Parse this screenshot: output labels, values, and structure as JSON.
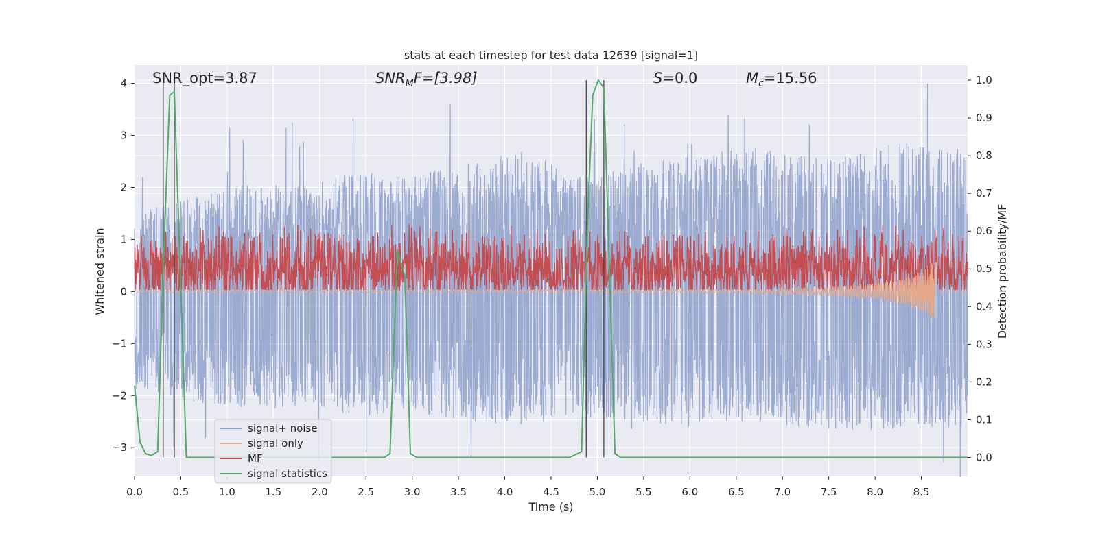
{
  "chart_data": {
    "type": "line",
    "title": "stats at each timestep for test data 12639 [signal=1]",
    "xlabel": "Time (s)",
    "ylabel": "Whitened strain",
    "y2label": "Detection probability/MF",
    "xlim": [
      0.0,
      9.0
    ],
    "ylim": [
      -3.55,
      4.35
    ],
    "y2lim": [
      -0.05,
      1.04
    ],
    "xticks": [
      "0.0",
      "0.5",
      "1.0",
      "1.5",
      "2.0",
      "2.5",
      "3.0",
      "3.5",
      "4.0",
      "4.5",
      "5.0",
      "5.5",
      "6.0",
      "6.5",
      "7.0",
      "7.5",
      "8.0",
      "8.5"
    ],
    "yticks": [
      "4",
      "3",
      "2",
      "1",
      "0",
      "−1",
      "−2",
      "−3"
    ],
    "y2ticks": [
      "1.0",
      "0.9",
      "0.8",
      "0.7",
      "0.6",
      "0.5",
      "0.4",
      "0.3",
      "0.2",
      "0.1",
      "0.0"
    ],
    "grid": true,
    "legend_position": "lower-left",
    "annotations": {
      "snr_opt": "SNR_opt=3.87",
      "snr_mf_base": "SNR",
      "snr_mf_sub": "M",
      "snr_mf_rest": "F=[3.98]",
      "s_stat_var": "S",
      "s_stat_val": "=0.0",
      "mc_base": "M",
      "mc_sub": "c",
      "mc_val": "=15.56"
    },
    "vertical_markers_x": [
      0.31,
      0.43,
      4.88,
      5.07
    ],
    "series": [
      {
        "name": "signal+ noise",
        "color": "#8da0cb",
        "axis": "left",
        "note_values": "noisy whitened strain, roughly symmetric about 0, range approx -3.2 to 4.0",
        "envelope_upper": [
          1.6,
          1.8,
          2.1,
          2.0,
          2.3,
          2.2,
          2.5,
          2.7,
          2.2,
          2.5,
          2.6,
          2.8,
          2.6,
          2.7,
          2.9,
          2.7
        ],
        "envelope_lower": [
          -1.9,
          -2.1,
          -2.3,
          -2.2,
          -2.4,
          -2.3,
          -2.5,
          -2.6,
          -2.4,
          -2.5,
          -2.6,
          -2.5,
          -2.6,
          -2.7,
          -2.6,
          -2.7
        ]
      },
      {
        "name": "signal only",
        "color": "#e8a98a",
        "axis": "left",
        "x": [
          0.0,
          6.5,
          7.0,
          7.5,
          8.0,
          8.3,
          8.5,
          8.6,
          8.65
        ],
        "amplitude": [
          0.02,
          0.03,
          0.05,
          0.08,
          0.15,
          0.25,
          0.4,
          0.55,
          0.6
        ]
      },
      {
        "name": "MF",
        "color": "#c44e52",
        "axis": "right",
        "note_values": "matched filter output fluctuating about 0.5 on right axis, range approx 0.45 to 0.64",
        "center": 0.5
      },
      {
        "name": "signal statistics",
        "color": "#55a868",
        "axis": "right",
        "x": [
          0.0,
          0.06,
          0.12,
          0.18,
          0.25,
          0.31,
          0.38,
          0.43,
          0.49,
          0.56,
          0.62,
          2.7,
          2.76,
          2.84,
          2.92,
          2.98,
          3.05,
          3.1,
          4.7,
          4.83,
          4.89,
          4.95,
          5.01,
          5.07,
          5.13,
          5.19,
          5.25,
          5.32,
          9.0
        ],
        "y": [
          0.19,
          0.04,
          0.01,
          0.005,
          0.015,
          0.5,
          0.96,
          0.97,
          0.52,
          0.0,
          0.0,
          0.0,
          0.01,
          0.55,
          0.48,
          0.01,
          0.0,
          0.0,
          0.0,
          0.015,
          0.6,
          0.96,
          1.0,
          0.98,
          0.5,
          0.01,
          0.0,
          0.0,
          0.0
        ]
      }
    ]
  }
}
